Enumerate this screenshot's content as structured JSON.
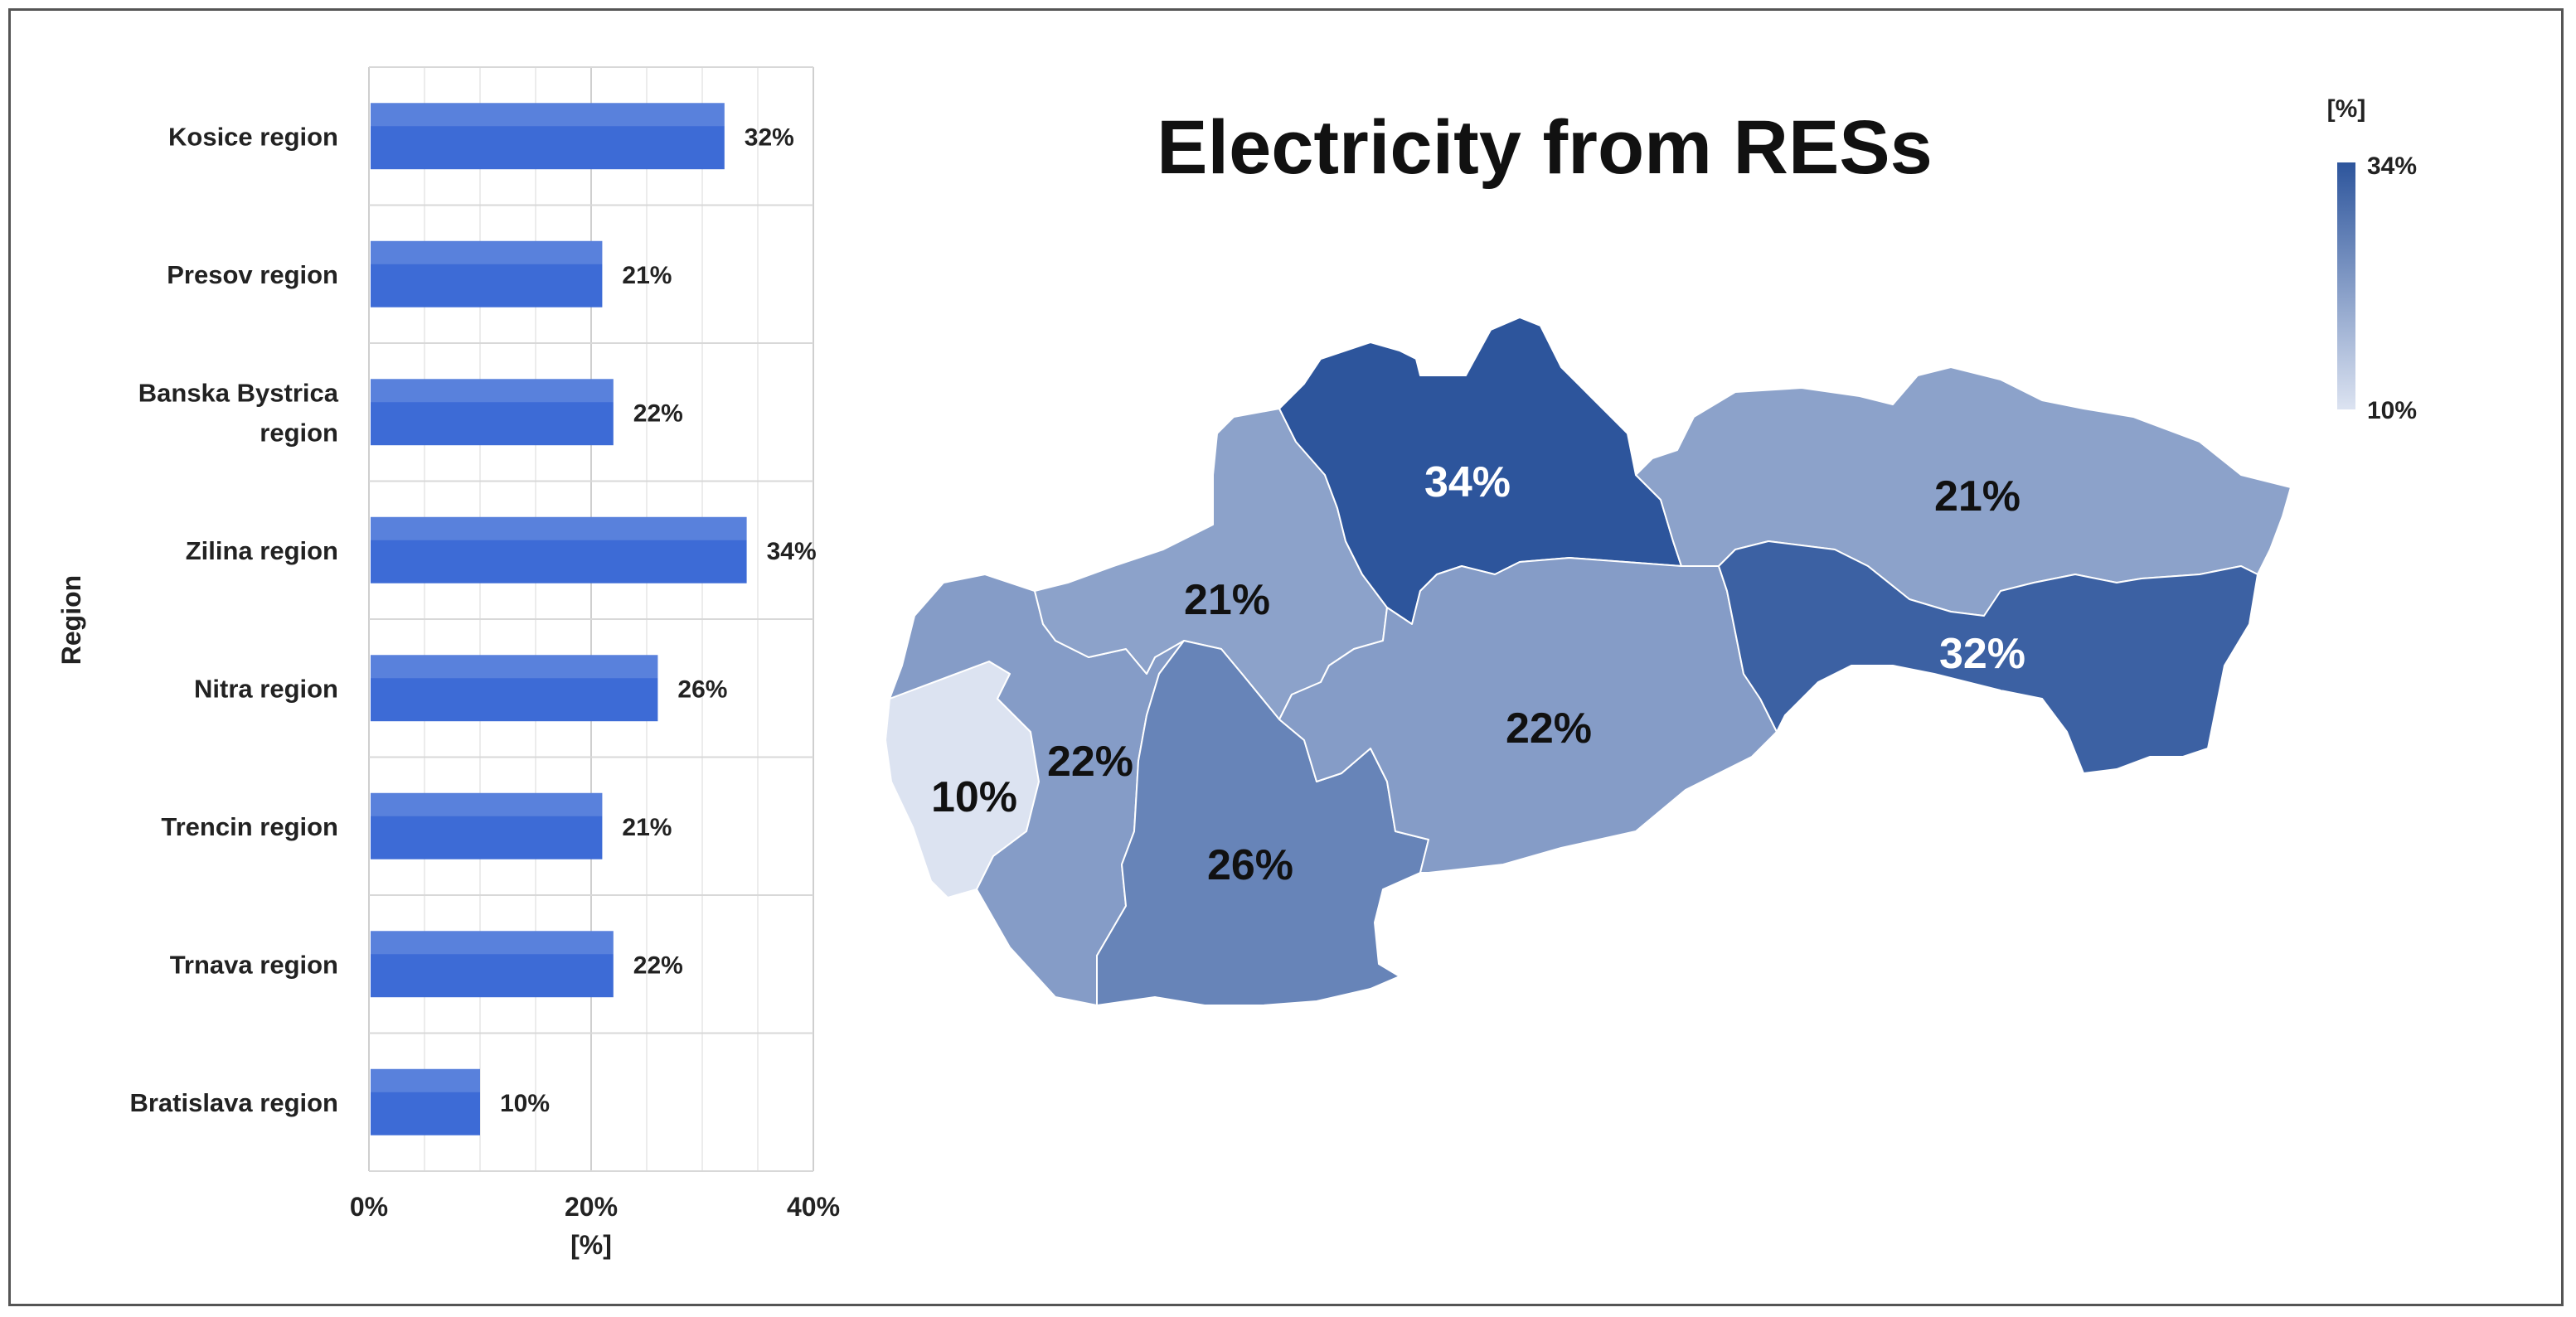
{
  "chart_data": [
    {
      "type": "bar",
      "orientation": "horizontal",
      "categories": [
        "Kosice region",
        "Presov region",
        "Banska Bystrica region",
        "Zilina region",
        "Nitra region",
        "Trencin region",
        "Trnava region",
        "Bratislava region"
      ],
      "category_lines": [
        [
          "Kosice region"
        ],
        [
          "Presov region"
        ],
        [
          "Banska Bystrica",
          "region"
        ],
        [
          "Zilina region"
        ],
        [
          "Nitra region"
        ],
        [
          "Trencin region"
        ],
        [
          "Trnava region"
        ],
        [
          "Bratislava region"
        ]
      ],
      "values": [
        32,
        21,
        22,
        34,
        26,
        21,
        22,
        10
      ],
      "value_labels": [
        "32%",
        "21%",
        "22%",
        "34%",
        "26%",
        "21%",
        "22%",
        "10%"
      ],
      "xlim": [
        0,
        40
      ],
      "xticks": [
        "0%",
        "20%",
        "40%"
      ],
      "xlabel": "[%]",
      "ylabel": "Region",
      "grid": true,
      "bar_color": "#3d6bd6"
    },
    {
      "type": "heatmap",
      "kind": "choropleth-map",
      "title": "Electricity from RESs",
      "regions": [
        {
          "name": "Bratislava region",
          "value": 10,
          "label": "10%"
        },
        {
          "name": "Trnava region",
          "value": 22,
          "label": "22%"
        },
        {
          "name": "Trencin region",
          "value": 21,
          "label": "21%"
        },
        {
          "name": "Nitra region",
          "value": 26,
          "label": "26%"
        },
        {
          "name": "Zilina region",
          "value": 34,
          "label": "34%"
        },
        {
          "name": "Banska Bystrica region",
          "value": 22,
          "label": "22%"
        },
        {
          "name": "Presov region",
          "value": 21,
          "label": "21%"
        },
        {
          "name": "Kosice region",
          "value": 32,
          "label": "32%"
        }
      ],
      "legend": {
        "title": "[%]",
        "max_label": "34%",
        "min_label": "10%",
        "max": 34,
        "min": 10,
        "placement": "top-right"
      },
      "colors": {
        "low": "#dce3f1",
        "high": "#2d559c"
      }
    }
  ]
}
